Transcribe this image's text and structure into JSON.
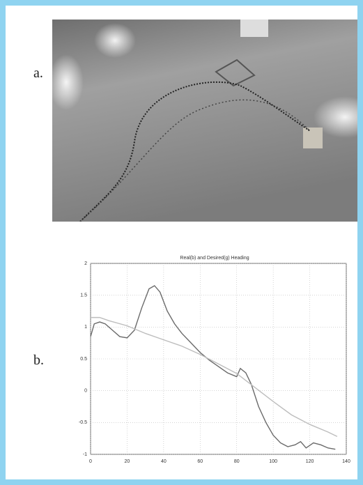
{
  "panels": [
    "a.",
    "b."
  ],
  "chart_data": {
    "type": "line",
    "title": "Real(b) and Desired(g) Heading",
    "xlim": [
      0,
      140
    ],
    "xticks": [
      0,
      20,
      40,
      60,
      80,
      100,
      120,
      140
    ],
    "ylim": [
      -1,
      2
    ],
    "yticks": [
      -1,
      -0.5,
      0,
      0.5,
      1,
      1.5,
      2
    ],
    "grid": true,
    "series": [
      {
        "name": "Real",
        "color": "#6a6a6a",
        "x": [
          0,
          2,
          5,
          8,
          12,
          16,
          20,
          24,
          28,
          32,
          35,
          38,
          42,
          46,
          50,
          55,
          60,
          65,
          70,
          75,
          80,
          82,
          85,
          88,
          92,
          96,
          100,
          104,
          108,
          112,
          115,
          118,
          122,
          126,
          130,
          134
        ],
        "values": [
          0.85,
          1.05,
          1.08,
          1.05,
          0.95,
          0.85,
          0.83,
          0.95,
          1.3,
          1.6,
          1.65,
          1.55,
          1.25,
          1.05,
          0.9,
          0.75,
          0.6,
          0.48,
          0.38,
          0.28,
          0.22,
          0.35,
          0.28,
          0.1,
          -0.25,
          -0.5,
          -0.7,
          -0.82,
          -0.88,
          -0.85,
          -0.8,
          -0.9,
          -0.82,
          -0.85,
          -0.9,
          -0.92
        ]
      },
      {
        "name": "Desired",
        "color": "#bdbdbd",
        "x": [
          0,
          5,
          10,
          20,
          30,
          40,
          50,
          60,
          70,
          80,
          90,
          100,
          110,
          120,
          130,
          135
        ],
        "values": [
          1.15,
          1.15,
          1.1,
          1.02,
          0.9,
          0.8,
          0.7,
          0.57,
          0.42,
          0.27,
          0.05,
          -0.17,
          -0.38,
          -0.53,
          -0.65,
          -0.72
        ]
      }
    ]
  }
}
